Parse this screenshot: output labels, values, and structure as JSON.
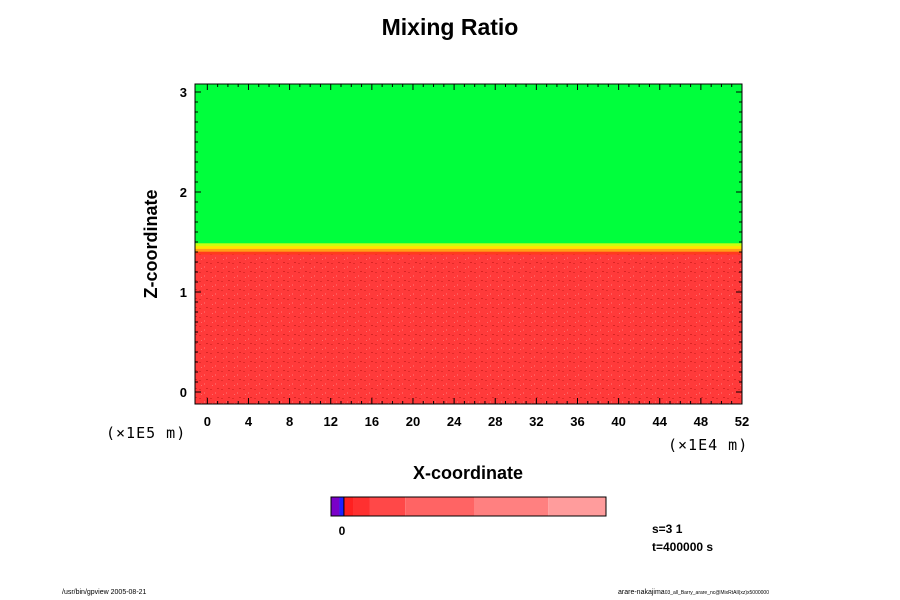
{
  "chart_data": {
    "type": "heatmap",
    "title": "Mixing Ratio",
    "xlabel": "X-coordinate",
    "ylabel": "Z-coordinate",
    "x_multiplier": "(×1E4 m)",
    "y_multiplier": "(×1E5 m)",
    "x_ticks": [
      "0",
      "4",
      "8",
      "12",
      "16",
      "20",
      "24",
      "28",
      "32",
      "36",
      "40",
      "44",
      "48",
      "52"
    ],
    "y_ticks": [
      "0",
      "1",
      "2",
      "3"
    ],
    "xlim": [
      -1.2,
      52
    ],
    "ylim": [
      -0.12,
      3.08
    ],
    "field": {
      "upper_layer": {
        "z_from": 1.52,
        "z_to": 3.08,
        "color": "#00ff3c"
      },
      "transition": {
        "z_from": 1.38,
        "z_to": 1.52,
        "colors": [
          "#ff3b1e",
          "#ffa015",
          "#ffe400",
          "#c8ff10",
          "#00ff3c"
        ]
      },
      "lower_layer": {
        "z_from": -0.12,
        "z_to": 1.38,
        "color": "#ff3a3a"
      }
    },
    "colorbar": {
      "colors": [
        "#7a00c8",
        "#2020ff",
        "#ff2020",
        "#ff3030",
        "#ff4848",
        "#ff6464",
        "#ff8080",
        "#ff9c9c"
      ],
      "segment_ends": [
        0.031,
        0.047,
        0.082,
        0.14,
        0.27,
        0.52,
        0.79,
        1.0
      ],
      "tick_label": "0"
    }
  },
  "annotations": {
    "step": "s=3 1",
    "time": "t=400000 s",
    "footer_left": "/usr/bin/gpview 2005-08-21",
    "footer_right_main": "arare-nakajima",
    "footer_right_small": "03_all_Barry_arare_nc@MixRtAll(xz)x5000000"
  }
}
